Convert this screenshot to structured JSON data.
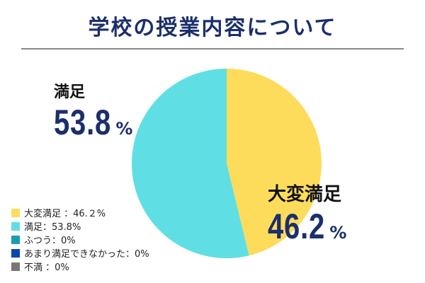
{
  "title": "学校の授業内容について",
  "chart_data": {
    "type": "pie",
    "categories": [
      "大変満足",
      "満足",
      "ふつう",
      "あまり満足できなかった",
      "不満"
    ],
    "values": [
      46.2,
      53.8,
      0,
      0,
      0
    ],
    "colors": [
      "#fddc5c",
      "#5fdfe4",
      "#1a9db0",
      "#0a47b0",
      "#777777"
    ],
    "start": "top",
    "direction": "clockwise",
    "callouts": [
      {
        "label": "大変満足",
        "value": "46.2",
        "unit": "%"
      },
      {
        "label": "満足",
        "value": "53.8",
        "unit": "%"
      }
    ],
    "legend": [
      "大変満足 ：46.２%",
      "満足：53.8%",
      "ふつう：0%",
      "あまり満足できなかった：0%",
      "不満 ：0%"
    ],
    "legend_position": "bottom-left"
  }
}
